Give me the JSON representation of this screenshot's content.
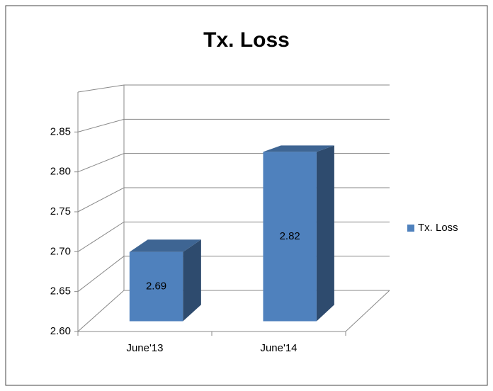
{
  "chart_data": {
    "type": "bar3d",
    "title": "Tx. Loss",
    "categories": [
      "June'13",
      "June'14"
    ],
    "series": [
      {
        "name": "Tx. Loss",
        "color": "#4f81bd",
        "values": [
          2.69,
          2.82
        ]
      }
    ],
    "ylim": [
      2.6,
      2.9
    ],
    "yticks": [
      {
        "value": 2.6,
        "label": "2.60"
      },
      2.65,
      {
        "value": 2.7,
        "label": "2.70"
      },
      2.75,
      {
        "value": 2.8,
        "label": "2.80"
      },
      2.85
    ],
    "grid": true,
    "legend": "right"
  }
}
